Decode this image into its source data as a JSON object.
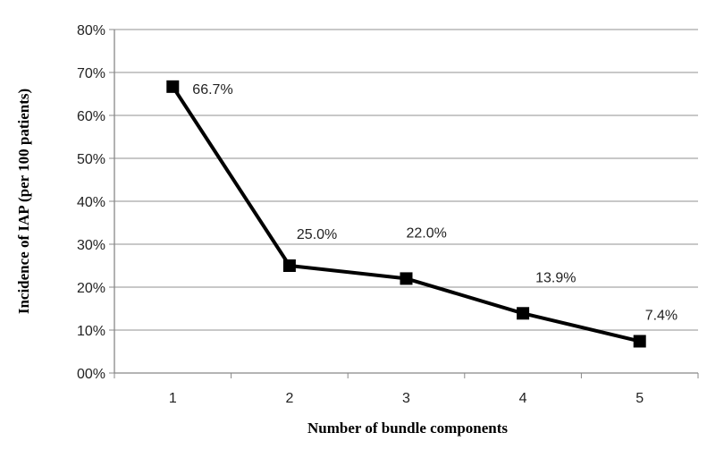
{
  "chart_data": {
    "type": "line",
    "title": "",
    "xlabel": "Number of bundle components",
    "ylabel": "Incidence of IAP (per 100 patients)",
    "categories": [
      "1",
      "2",
      "3",
      "4",
      "5"
    ],
    "series": [
      {
        "values": [
          66.7,
          25.0,
          22.0,
          13.9,
          7.4
        ],
        "data_labels": [
          "66.7%",
          "25.0%",
          "22.0%",
          "13.9%",
          "7.4%"
        ],
        "marker": "square",
        "color": "#000000"
      }
    ],
    "ylim": [
      0,
      80
    ],
    "yticks": [
      0,
      10,
      20,
      30,
      40,
      50,
      60,
      70,
      80
    ],
    "ytick_labels": [
      "00%",
      "10%",
      "20%",
      "30%",
      "40%",
      "50%",
      "60%",
      "70%",
      "80%"
    ],
    "grid": true,
    "legend": "none"
  },
  "colors": {
    "grid": "#a6a6a6",
    "axis": "#888888",
    "line": "#000000",
    "text": "#222222"
  }
}
